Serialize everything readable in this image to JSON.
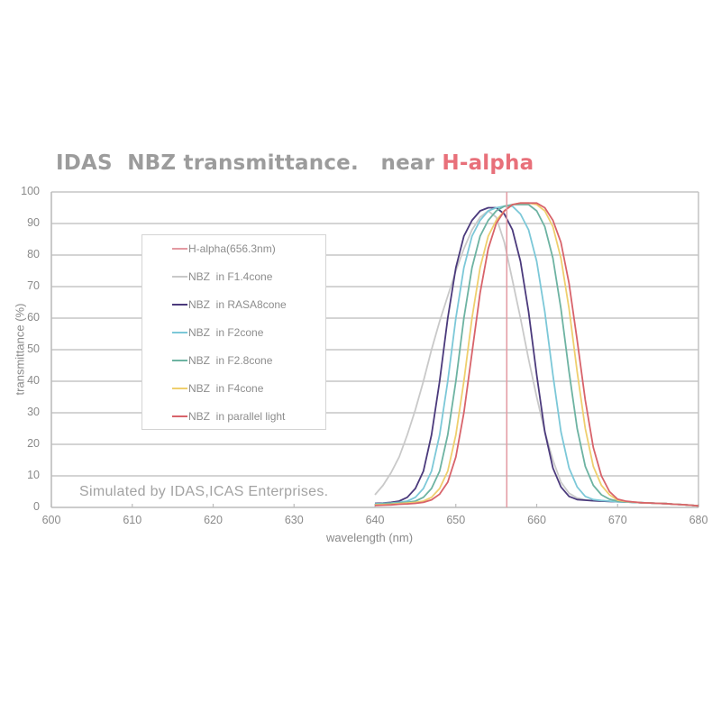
{
  "title": {
    "main": "IDAS  NBZ transmittance.   near ",
    "accent": "H-alpha"
  },
  "watermark": "Simulated by IDAS,ICAS Enterprises.",
  "colors": {
    "title": "#9c9c9c",
    "accent": "#e8707a",
    "grid": "#c6c6c6"
  },
  "chart_data": {
    "type": "line",
    "title": "IDAS  NBZ transmittance.   near H-alpha",
    "xlabel": "wavelength (nm)",
    "ylabel": "transmittance (%)",
    "xlim": [
      600,
      680
    ],
    "ylim": [
      0,
      100
    ],
    "xticks": [
      600,
      610,
      620,
      630,
      640,
      650,
      660,
      670,
      680
    ],
    "yticks": [
      0,
      10,
      20,
      30,
      40,
      50,
      60,
      70,
      80,
      90,
      100
    ],
    "grid": "horizontal",
    "legend_position": "upper-left inside",
    "annotation": "Simulated by IDAS,ICAS Enterprises.",
    "vlines": [
      {
        "name": "H-alpha(656.3nm)",
        "x": 656.3,
        "color": "#e39aa2"
      }
    ],
    "x": [
      640,
      641,
      642,
      643,
      644,
      645,
      646,
      647,
      648,
      649,
      650,
      651,
      652,
      653,
      654,
      655,
      656,
      657,
      658,
      659,
      660,
      661,
      662,
      663,
      664,
      665,
      666,
      667,
      668,
      669,
      670,
      671,
      672,
      673,
      674,
      675,
      676,
      677,
      678,
      679,
      680
    ],
    "series": [
      {
        "name": "NBZ  in F1.4cone",
        "color": "#c9c9c9",
        "values": [
          4,
          7,
          11,
          16,
          23,
          31,
          40,
          50,
          59,
          67,
          75,
          82,
          88,
          92,
          94,
          92,
          84,
          72,
          60,
          47,
          35,
          24,
          15,
          8,
          4.5,
          3,
          2.4,
          2.1,
          2.0,
          1.9,
          1.8,
          1.7,
          1.6,
          1.5,
          1.4,
          1.3,
          1.2,
          1.0,
          0.9,
          0.7,
          0.5
        ]
      },
      {
        "name": "NBZ  in RASA8cone",
        "color": "#4b3a7c",
        "values": [
          1.3,
          1.4,
          1.6,
          2.0,
          3.2,
          6.0,
          11.5,
          23,
          40,
          60,
          76,
          86,
          91,
          94,
          95,
          95,
          93,
          88,
          78,
          62,
          42,
          24,
          12.5,
          6.5,
          3.5,
          2.5,
          2.3,
          2.1,
          2.0,
          1.9,
          1.8,
          1.7,
          1.6,
          1.5,
          1.4,
          1.3,
          1.2,
          1.0,
          0.9,
          0.7,
          0.5
        ]
      },
      {
        "name": "NBZ  in F2cone",
        "color": "#7cc8d8",
        "values": [
          1.1,
          1.3,
          1.4,
          1.6,
          2.0,
          3.2,
          6.0,
          11.5,
          23,
          40,
          60,
          76,
          86,
          91,
          94,
          95,
          95.5,
          95.5,
          93,
          88,
          78,
          62,
          42,
          24,
          12.5,
          6.5,
          3.5,
          2.5,
          2.2,
          2.0,
          1.8,
          1.7,
          1.6,
          1.5,
          1.4,
          1.3,
          1.2,
          1.0,
          0.9,
          0.7,
          0.5
        ]
      },
      {
        "name": "NBZ  in F2.8cone",
        "color": "#6db3a2",
        "values": [
          0.9,
          1.1,
          1.3,
          1.4,
          1.6,
          2.0,
          3.2,
          6.0,
          11.5,
          23,
          40,
          60,
          76,
          86,
          91,
          94,
          95.5,
          96,
          96,
          96,
          94,
          89,
          79,
          63,
          43,
          25,
          13,
          7,
          4,
          2.6,
          2.0,
          1.8,
          1.6,
          1.5,
          1.4,
          1.3,
          1.2,
          1.0,
          0.9,
          0.7,
          0.5
        ]
      },
      {
        "name": "NBZ  in F4cone",
        "color": "#efcf6e",
        "values": [
          0.8,
          0.9,
          1.0,
          1.2,
          1.4,
          1.6,
          2.0,
          3.2,
          6.0,
          11.5,
          23,
          40,
          60,
          76,
          86,
          91,
          94,
          96,
          96.5,
          96.5,
          96,
          94,
          89,
          79,
          63,
          43,
          25,
          13,
          7,
          4,
          2.3,
          1.9,
          1.7,
          1.5,
          1.4,
          1.3,
          1.2,
          1.0,
          0.9,
          0.7,
          0.5
        ]
      },
      {
        "name": "NBZ  in parallel light",
        "color": "#d8636a",
        "values": [
          0.6,
          0.7,
          0.8,
          1.0,
          1.1,
          1.3,
          1.6,
          2.4,
          4.2,
          8,
          16,
          30,
          49,
          68,
          82,
          90,
          94,
          96,
          96.5,
          96.5,
          96.5,
          95,
          91,
          84,
          71,
          53,
          34,
          19,
          10,
          5,
          2.6,
          2.0,
          1.7,
          1.5,
          1.4,
          1.3,
          1.2,
          1.0,
          0.9,
          0.7,
          0.5
        ]
      }
    ],
    "legend": [
      {
        "label": "H-alpha(656.3nm)",
        "color": "#e39aa2"
      },
      {
        "label": "NBZ  in F1.4cone",
        "color": "#c9c9c9"
      },
      {
        "label": "NBZ  in RASA8cone",
        "color": "#4b3a7c"
      },
      {
        "label": "NBZ  in F2cone",
        "color": "#7cc8d8"
      },
      {
        "label": "NBZ  in F2.8cone",
        "color": "#6db3a2"
      },
      {
        "label": "NBZ  in F4cone",
        "color": "#efcf6e"
      },
      {
        "label": "NBZ  in parallel light",
        "color": "#d8636a"
      }
    ]
  }
}
